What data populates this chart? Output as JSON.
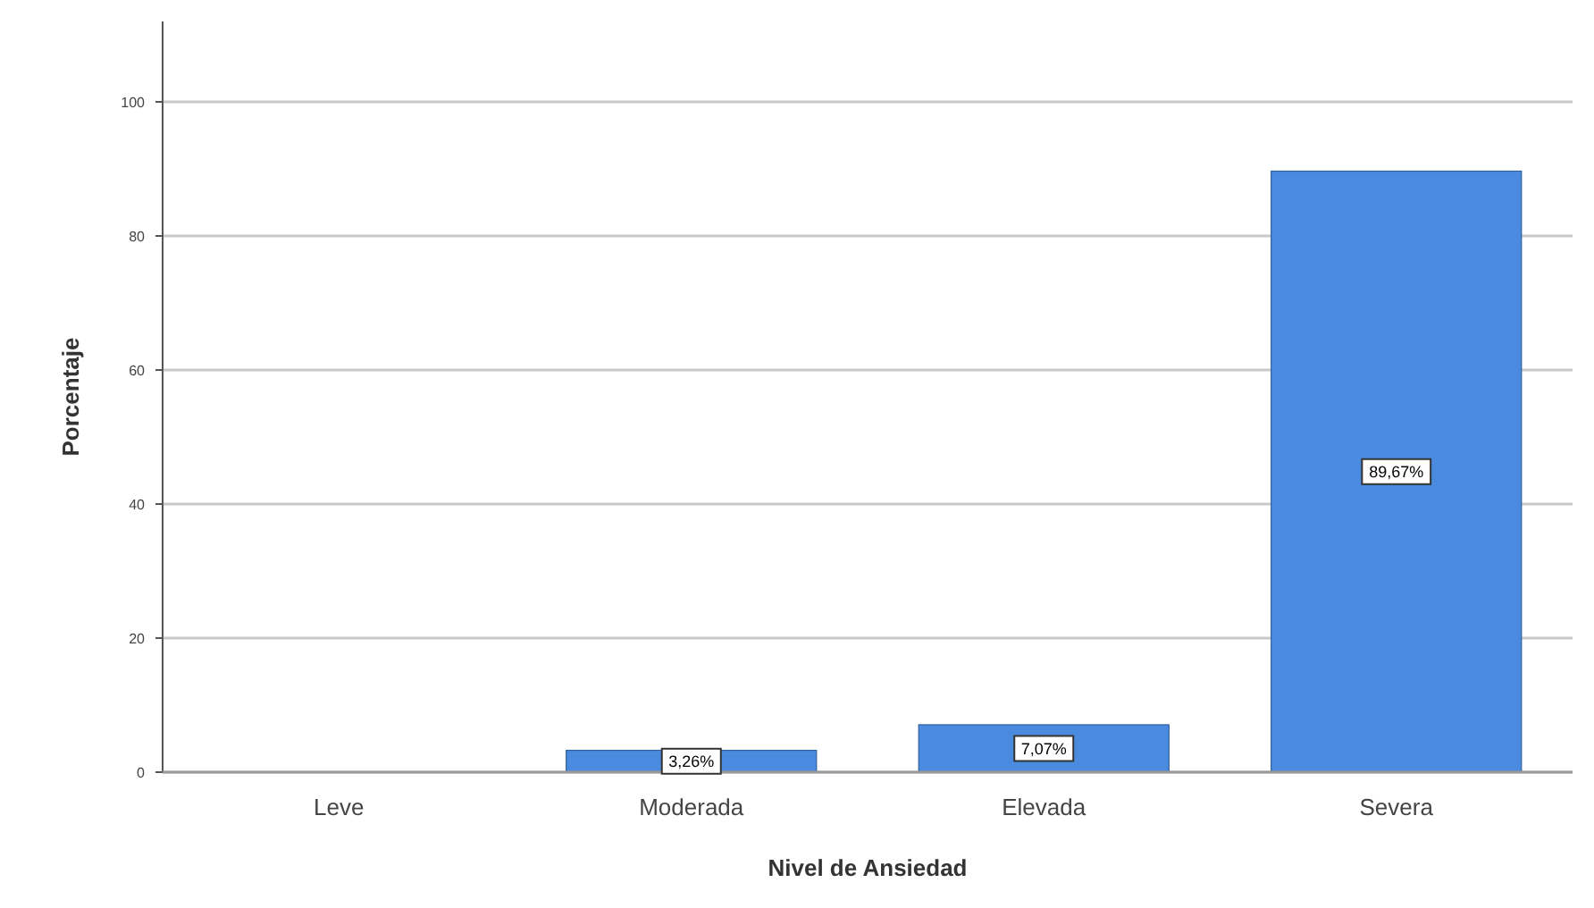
{
  "chart_data": {
    "type": "bar",
    "xlabel": "Nivel de Ansiedad",
    "ylabel": "Porcentaje",
    "categories": [
      "Leve",
      "Moderada",
      "Elevada",
      "Severa"
    ],
    "values": [
      0,
      3.26,
      7.07,
      89.67
    ],
    "value_labels": [
      null,
      "3,26%",
      "7,07%",
      "89,67%"
    ],
    "color": "#4a8bdf",
    "ylim": [
      0,
      112
    ],
    "yticks": [
      0,
      20,
      40,
      60,
      80,
      100
    ],
    "grid": "y"
  }
}
